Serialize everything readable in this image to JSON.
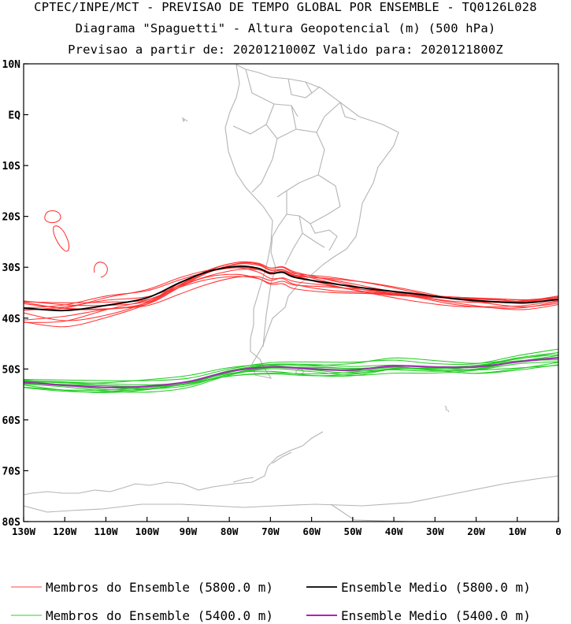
{
  "header": {
    "line1": "CPTEC/INPE/MCT - PREVISAO DE TEMPO GLOBAL POR ENSEMBLE - TQ0126L028",
    "line2": "Diagrama \"Spaguetti\" - Altura Geopotencial (m) (500 hPa)",
    "line3": "Previsao a partir de: 2020121000Z  Valido para: 2020121800Z"
  },
  "axes": {
    "lat_labels": [
      "10N",
      "EQ",
      "10S",
      "20S",
      "30S",
      "40S",
      "50S",
      "60S",
      "70S",
      "80S"
    ],
    "lon_labels": [
      "130W",
      "120W",
      "110W",
      "100W",
      "90W",
      "80W",
      "70W",
      "60W",
      "50W",
      "40W",
      "30W",
      "20W",
      "10W",
      "0"
    ]
  },
  "map": {
    "extent": {
      "lon_min": -130,
      "lon_max": 0,
      "lat_min": -80,
      "lat_max": 10
    },
    "ensemble_5800": {
      "color": "#ff3333",
      "mean_color": "#000000",
      "mean": [
        [
          -130,
          -38
        ],
        [
          -120,
          -38.5
        ],
        [
          -110,
          -37.5
        ],
        [
          -100,
          -36
        ],
        [
          -92,
          -33
        ],
        [
          -85,
          -30.8
        ],
        [
          -78,
          -29.8
        ],
        [
          -73,
          -30.2
        ],
        [
          -70,
          -31.2
        ],
        [
          -67,
          -31
        ],
        [
          -64,
          -32
        ],
        [
          -55,
          -33.2
        ],
        [
          -45,
          -34.3
        ],
        [
          -35,
          -35.2
        ],
        [
          -25,
          -36.2
        ],
        [
          -15,
          -36.8
        ],
        [
          -8,
          -37
        ],
        [
          0,
          -36.3
        ]
      ],
      "member_count": 11
    },
    "ensemble_5400": {
      "color": "#22cc22",
      "mean_color": "#9933aa",
      "mean": [
        [
          -130,
          -52.6
        ],
        [
          -120,
          -53.2
        ],
        [
          -110,
          -53.6
        ],
        [
          -100,
          -53.4
        ],
        [
          -90,
          -52.5
        ],
        [
          -80,
          -50.5
        ],
        [
          -70,
          -49.6
        ],
        [
          -60,
          -50
        ],
        [
          -50,
          -50.2
        ],
        [
          -40,
          -49.4
        ],
        [
          -30,
          -49.6
        ],
        [
          -20,
          -49.6
        ],
        [
          -10,
          -48.6
        ],
        [
          0,
          -47.8
        ]
      ],
      "member_count": 11
    }
  },
  "legend": {
    "members_5800": "Membros do Ensemble (5800.0 m)",
    "mean_5800": "Ensemble Medio (5800.0 m)",
    "members_5400": "Membros do Ensemble (5400.0 m)",
    "mean_5400": "Ensemble Medio (5400.0 m)",
    "colors": {
      "red": "#ff4444",
      "black": "#000000",
      "green": "#33cc33",
      "purple": "#aa00aa"
    }
  }
}
